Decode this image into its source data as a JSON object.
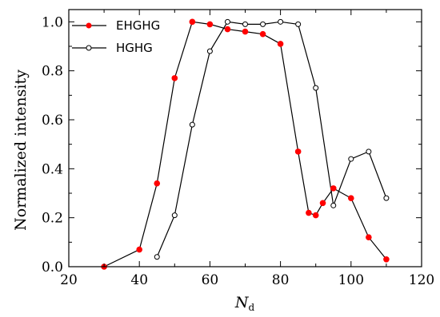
{
  "chart_data": {
    "type": "line",
    "xlabel_main": "N",
    "xlabel_sub": "d",
    "ylabel": "Normalized intensity",
    "xlim": [
      20,
      120
    ],
    "ylim": [
      0.0,
      1.05
    ],
    "xticks": [
      "20",
      "40",
      "60",
      "80",
      "100",
      "120"
    ],
    "yticks": [
      "0.0",
      "0.2",
      "0.4",
      "0.6",
      "0.8",
      "1.0"
    ],
    "legend_position": "top-left",
    "series": [
      {
        "name": "EHGHG",
        "marker": "filled-circle",
        "color": "#ff0000",
        "x": [
          30,
          40,
          45,
          50,
          55,
          60,
          65,
          70,
          75,
          80,
          85,
          88,
          90,
          92,
          95,
          100,
          105,
          110
        ],
        "y": [
          0.0,
          0.07,
          0.34,
          0.77,
          1.0,
          0.99,
          0.97,
          0.96,
          0.95,
          0.91,
          0.47,
          0.22,
          0.21,
          0.26,
          0.32,
          0.28,
          0.12,
          0.03
        ]
      },
      {
        "name": "HGHG",
        "marker": "open-circle",
        "color": "#000000",
        "x": [
          45,
          50,
          55,
          60,
          65,
          70,
          75,
          80,
          85,
          90,
          95,
          100,
          105,
          110
        ],
        "y": [
          0.04,
          0.21,
          0.58,
          0.88,
          1.0,
          0.99,
          0.99,
          1.0,
          0.99,
          0.73,
          0.25,
          0.44,
          0.47,
          0.28
        ]
      }
    ]
  }
}
